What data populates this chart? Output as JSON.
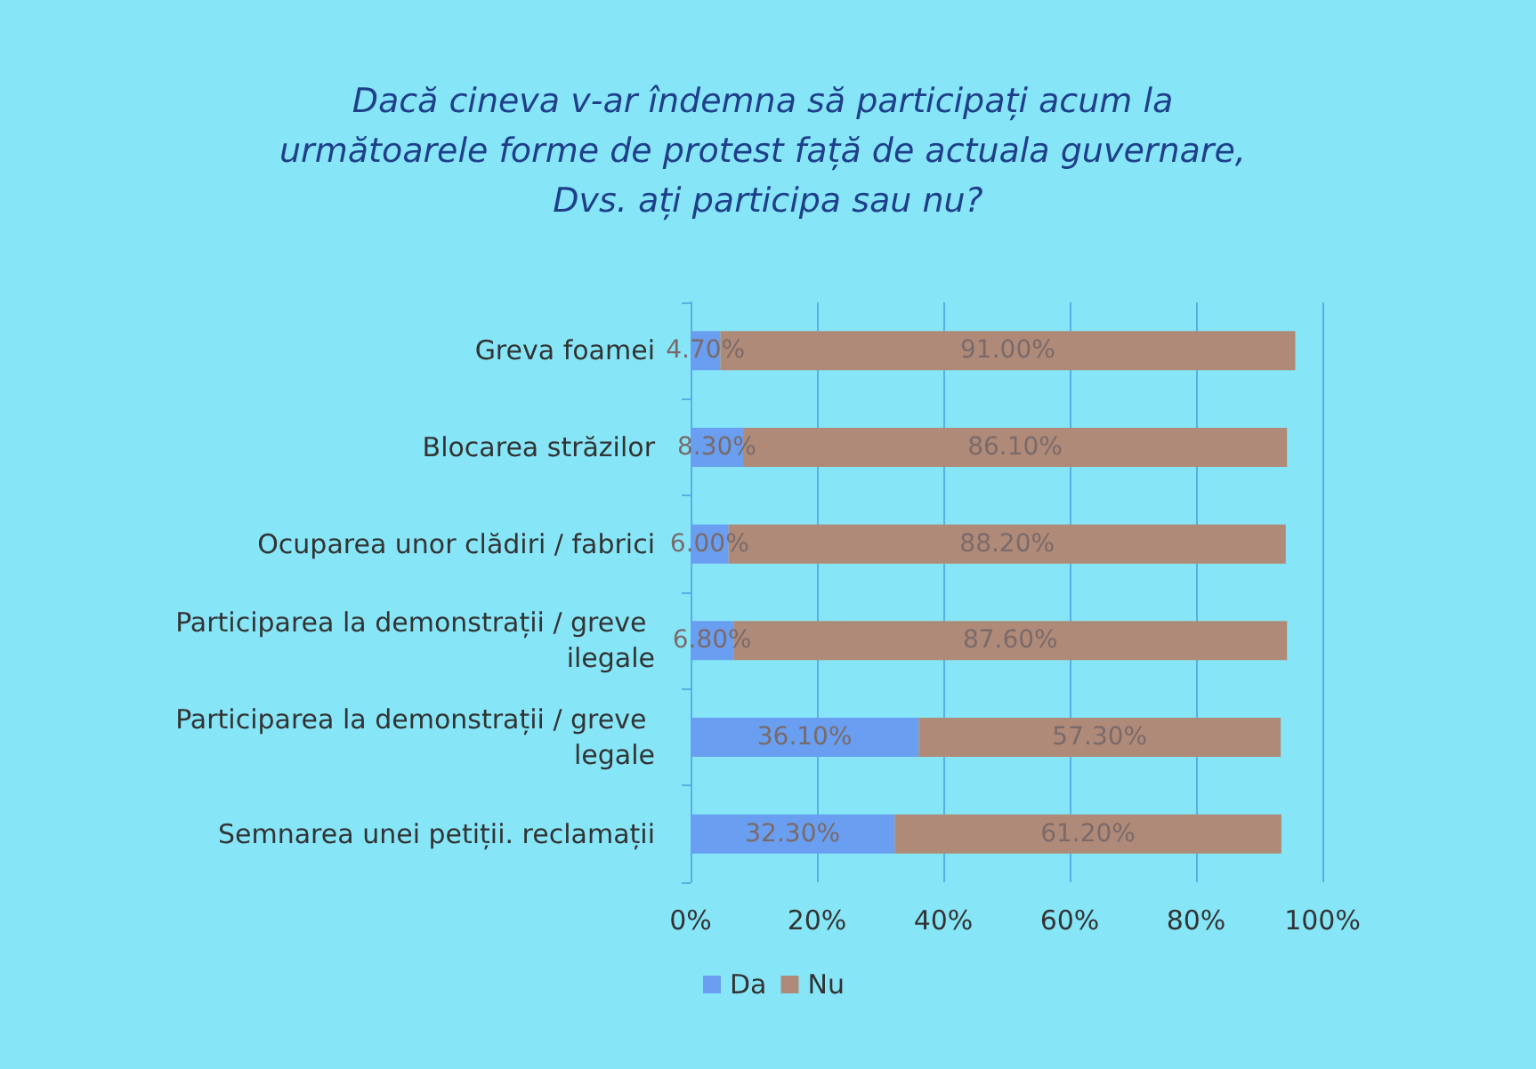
{
  "chart_data": {
    "type": "bar",
    "orientation": "horizontal",
    "stacked": true,
    "title": "Dacă cineva v-ar îndemna să participați acum la următoarele forme de protest față de actuala guvernare, Dvs. ați participa sau nu?",
    "categories": [
      "Greva foamei",
      "Blocarea străzilor",
      "Ocuparea unor clădiri / fabrici",
      "Participarea la demonstrații / greve ilegale",
      "Participarea la demonstrații / greve legale",
      "Semnarea unei petiții. reclamații"
    ],
    "series": [
      {
        "name": "Da",
        "color": "#6a9ef0",
        "values": [
          4.7,
          8.3,
          6.0,
          6.8,
          36.1,
          32.3
        ],
        "value_labels": [
          "4.70%",
          "8.30%",
          "6.00%",
          "6.80%",
          "36.10%",
          "32.30%"
        ]
      },
      {
        "name": "Nu",
        "color": "#b08a78",
        "values": [
          91.0,
          86.1,
          88.2,
          87.6,
          57.3,
          61.2
        ],
        "value_labels": [
          "91.00%",
          "86.10%",
          "88.20%",
          "87.60%",
          "57.30%",
          "61.20%"
        ]
      }
    ],
    "xlim": [
      0,
      100
    ],
    "xticks": [
      {
        "value": 0,
        "label": "0%"
      },
      {
        "value": 20,
        "label": "20%"
      },
      {
        "value": 40,
        "label": "40%"
      },
      {
        "value": 60,
        "label": "60%"
      },
      {
        "value": 80,
        "label": "80%"
      },
      {
        "value": 100,
        "label": "100%"
      }
    ],
    "grid": "x",
    "legend": "bottom"
  }
}
